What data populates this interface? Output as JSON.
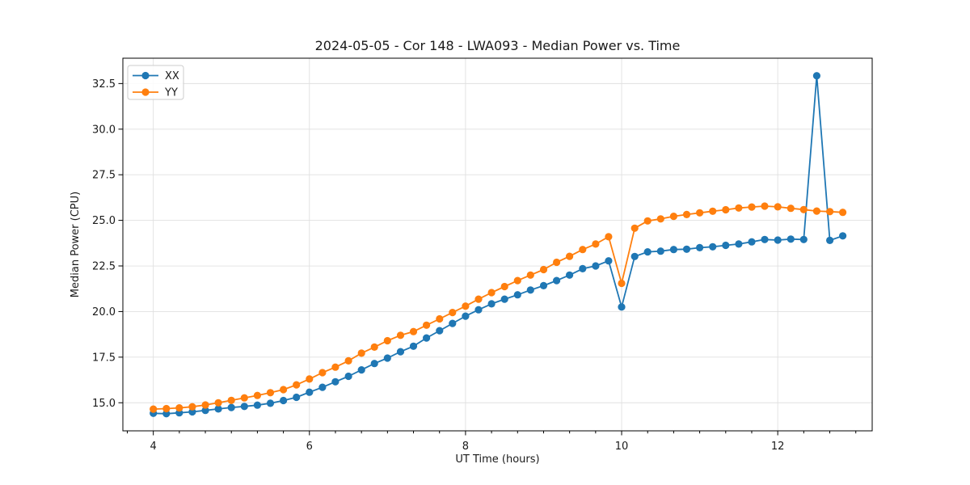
{
  "window": {
    "background": "#ffffff"
  },
  "chart_data": {
    "type": "line",
    "title": "2024-05-05 - Cor 148 - LWA093 - Median Power vs. Time",
    "xlabel": "UT Time (hours)",
    "ylabel": "Median Power (CPU)",
    "xlim": [
      3.61,
      13.21
    ],
    "ylim": [
      13.46,
      33.89
    ],
    "grid": true,
    "legend_position": "upper-left",
    "x_major_ticks": [
      4,
      6,
      8,
      10,
      12
    ],
    "x_tick_labels": [
      "4",
      "6",
      "8",
      "10",
      "12"
    ],
    "x_minor_step": 0.33333,
    "y_major_ticks": [
      15.0,
      17.5,
      20.0,
      22.5,
      25.0,
      27.5,
      30.0,
      32.5
    ],
    "y_tick_labels": [
      "15.0",
      "17.5",
      "20.0",
      "22.5",
      "25.0",
      "27.5",
      "30.0",
      "32.5"
    ],
    "x": [
      4.0,
      4.167,
      4.333,
      4.5,
      4.667,
      4.833,
      5.0,
      5.167,
      5.333,
      5.5,
      5.667,
      5.833,
      6.0,
      6.167,
      6.333,
      6.5,
      6.667,
      6.833,
      7.0,
      7.167,
      7.333,
      7.5,
      7.667,
      7.833,
      8.0,
      8.167,
      8.333,
      8.5,
      8.667,
      8.833,
      9.0,
      9.167,
      9.333,
      9.5,
      9.667,
      9.833,
      10.0,
      10.167,
      10.333,
      10.5,
      10.667,
      10.833,
      11.0,
      11.167,
      11.333,
      11.5,
      11.667,
      11.833,
      12.0,
      12.167,
      12.333,
      12.5,
      12.667,
      12.833
    ],
    "series": [
      {
        "name": "XX",
        "color": "#1f77b4",
        "values": [
          14.42,
          14.4,
          14.45,
          14.5,
          14.58,
          14.66,
          14.74,
          14.8,
          14.87,
          14.97,
          15.12,
          15.3,
          15.58,
          15.85,
          16.15,
          16.45,
          16.8,
          17.15,
          17.45,
          17.8,
          18.1,
          18.55,
          18.95,
          19.35,
          19.75,
          20.1,
          20.42,
          20.68,
          20.92,
          21.18,
          21.42,
          21.7,
          22.0,
          22.35,
          22.5,
          22.78,
          20.25,
          23.02,
          23.27,
          23.31,
          23.4,
          23.42,
          23.5,
          23.55,
          23.63,
          23.7,
          23.82,
          23.95,
          23.92,
          23.97,
          23.95,
          32.93,
          23.9,
          24.15
        ]
      },
      {
        "name": "YY",
        "color": "#ff7f0e",
        "values": [
          14.65,
          14.68,
          14.72,
          14.78,
          14.88,
          15.0,
          15.13,
          15.27,
          15.4,
          15.55,
          15.72,
          15.98,
          16.3,
          16.65,
          16.95,
          17.3,
          17.72,
          18.05,
          18.4,
          18.7,
          18.9,
          19.25,
          19.6,
          19.95,
          20.3,
          20.68,
          21.04,
          21.37,
          21.7,
          22.0,
          22.3,
          22.7,
          23.03,
          23.4,
          23.7,
          24.1,
          21.55,
          24.57,
          24.97,
          25.08,
          25.22,
          25.32,
          25.41,
          25.5,
          25.58,
          25.68,
          25.73,
          25.78,
          25.74,
          25.66,
          25.59,
          25.51,
          25.48,
          25.44
        ]
      }
    ]
  },
  "style_colors": {
    "spine": "#000000",
    "grid": "#e0e0e0",
    "text": "#1a1a1a",
    "legend_border": "#cccccc",
    "legend_bg": "#ffffff"
  }
}
